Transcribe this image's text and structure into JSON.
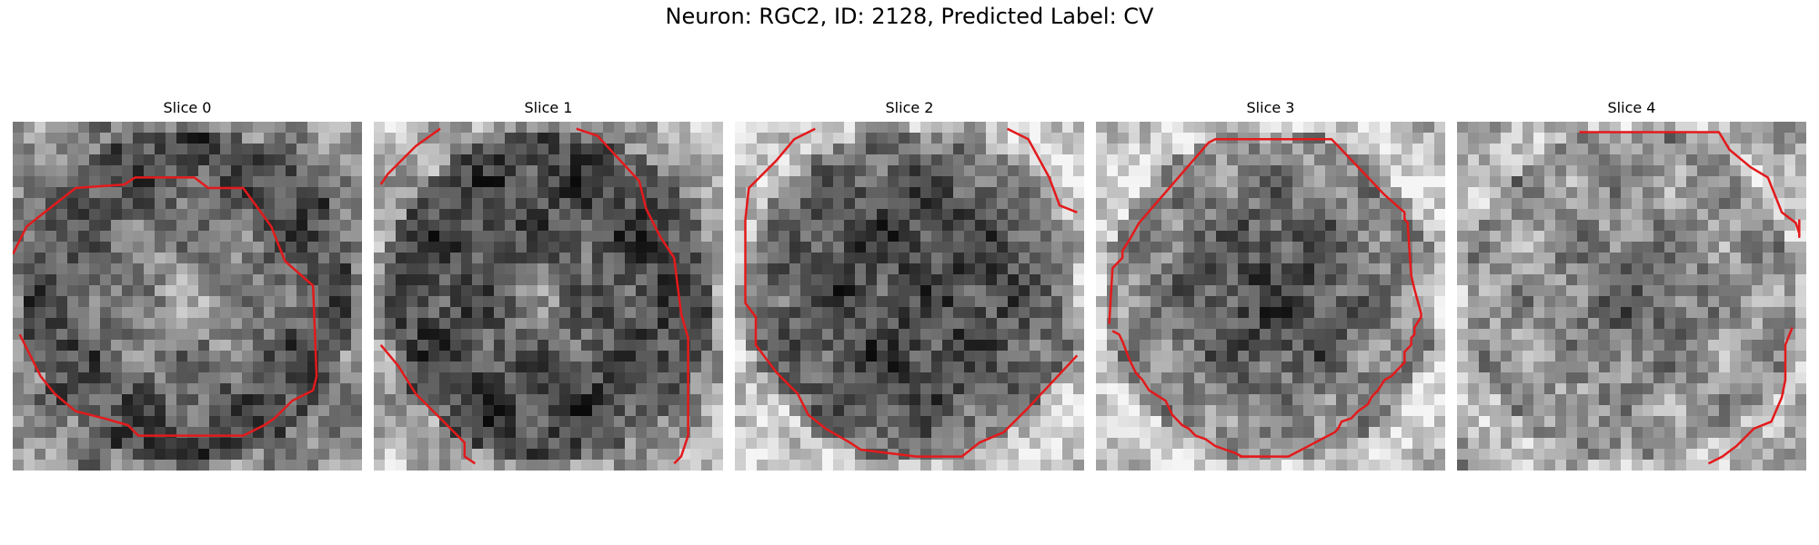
{
  "figure": {
    "title": "Neuron: RGC2, ID: 2128, Predicted Label: CV"
  },
  "colors": {
    "contour": "#e31a1c",
    "background": "#ffffff"
  },
  "panels": [
    {
      "title": "Slice 0"
    },
    {
      "title": "Slice 1"
    },
    {
      "title": "Slice 2"
    },
    {
      "title": "Slice 3"
    },
    {
      "title": "Slice 4"
    }
  ]
}
